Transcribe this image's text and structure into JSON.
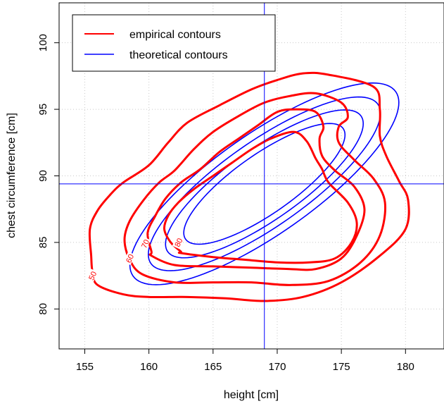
{
  "chart_data": {
    "type": "contour",
    "xlabel": "height [cm]",
    "ylabel": "chest circumference [cm]",
    "xlim": [
      153,
      183
    ],
    "ylim": [
      77,
      103
    ],
    "xticks": [
      155,
      160,
      165,
      170,
      175,
      180
    ],
    "yticks": [
      80,
      85,
      90,
      95,
      100
    ],
    "grid": true,
    "legend_position": "top-left",
    "reference_lines": {
      "vertical_x": 169,
      "horizontal_y": 89.4,
      "color": "#0000ff"
    },
    "series": [
      {
        "name": "empirical contours",
        "color": "#ff0000",
        "contours": [
          {
            "level": "50",
            "label_at": [
              155.6,
              82.5
            ],
            "points": [
              [
                156,
                81.8
              ],
              [
                158,
                81.1
              ],
              [
                160,
                80.9
              ],
              [
                163,
                80.9
              ],
              [
                166,
                80.8
              ],
              [
                169,
                80.6
              ],
              [
                172,
                80.9
              ],
              [
                175,
                82
              ],
              [
                178,
                84
              ],
              [
                180,
                86
              ],
              [
                180.2,
                88.2
              ],
              [
                179.5,
                89.6
              ],
              [
                178.5,
                91.5
              ],
              [
                178,
                93
              ],
              [
                178,
                95
              ],
              [
                177.5,
                96.7
              ],
              [
                174,
                97.6
              ],
              [
                172,
                97.7
              ],
              [
                170,
                97.2
              ],
              [
                168,
                96.5
              ],
              [
                165.5,
                95.3
              ],
              [
                163,
                94
              ],
              [
                161.5,
                92.5
              ],
              [
                160,
                90.8
              ],
              [
                158,
                89.5
              ],
              [
                157,
                88.6
              ],
              [
                156,
                87.4
              ],
              [
                155.4,
                86
              ],
              [
                155.5,
                84
              ],
              [
                155.6,
                82.8
              ]
            ]
          },
          {
            "level": "60",
            "label_at": [
              158.5,
              83.8
            ],
            "points": [
              [
                159.5,
                82.6
              ],
              [
                162,
                82
              ],
              [
                165,
                82
              ],
              [
                168,
                82
              ],
              [
                171,
                81.8
              ],
              [
                174,
                82.1
              ],
              [
                176.5,
                83.5
              ],
              [
                178,
                85.5
              ],
              [
                178.4,
                88
              ],
              [
                177.5,
                89.8
              ],
              [
                176,
                91.2
              ],
              [
                174.8,
                92.5
              ],
              [
                174.8,
                93.7
              ],
              [
                175.5,
                94.4
              ],
              [
                175,
                95.5
              ],
              [
                173,
                96.2
              ],
              [
                171,
                96
              ],
              [
                169,
                95.5
              ],
              [
                167,
                94.5
              ],
              [
                165,
                93.3
              ],
              [
                163.5,
                92
              ],
              [
                162,
                90.4
              ],
              [
                160.8,
                89.5
              ],
              [
                159.6,
                88.2
              ],
              [
                158.5,
                86.6
              ],
              [
                158.1,
                85.2
              ],
              [
                158.5,
                83.7
              ]
            ]
          },
          {
            "level": "70",
            "label_at": [
              159.7,
              84.9
            ],
            "points": [
              [
                160.2,
                84
              ],
              [
                162,
                83.3
              ],
              [
                165,
                83.2
              ],
              [
                168,
                83.1
              ],
              [
                171,
                83
              ],
              [
                173,
                83
              ],
              [
                175,
                83.8
              ],
              [
                176.2,
                85.5
              ],
              [
                176.8,
                87.5
              ],
              [
                176,
                89.2
              ],
              [
                174.5,
                90.4
              ],
              [
                173.5,
                91.5
              ],
              [
                173.3,
                92.8
              ],
              [
                173.6,
                93.7
              ],
              [
                173,
                94.8
              ],
              [
                171.5,
                95
              ],
              [
                170,
                94.8
              ],
              [
                168.5,
                93.8
              ],
              [
                167,
                92.8
              ],
              [
                165.5,
                91.8
              ],
              [
                164,
                90.5
              ],
              [
                162.5,
                89.5
              ],
              [
                161.3,
                88.3
              ],
              [
                160.5,
                87
              ],
              [
                159.9,
                85.7
              ],
              [
                160.2,
                84.3
              ]
            ]
          },
          {
            "level": "80",
            "label_at": [
              162.3,
              85.0
            ],
            "points": [
              [
                162.5,
                84.2
              ],
              [
                165,
                83.9
              ],
              [
                167.5,
                83.7
              ],
              [
                170,
                83.5
              ],
              [
                172.5,
                83.5
              ],
              [
                174.5,
                83.8
              ],
              [
                175.8,
                85
              ],
              [
                176.2,
                86.5
              ],
              [
                175.5,
                88
              ],
              [
                174,
                89.5
              ],
              [
                173.5,
                90.5
              ],
              [
                173,
                91.3
              ],
              [
                172.3,
                92.6
              ],
              [
                171.3,
                93.3
              ],
              [
                169.5,
                92.8
              ],
              [
                168,
                92
              ],
              [
                166.5,
                91
              ],
              [
                165,
                90
              ],
              [
                163.5,
                89
              ],
              [
                162.3,
                88
              ],
              [
                161.5,
                87
              ],
              [
                161.2,
                86
              ],
              [
                161.7,
                85
              ],
              [
                162.5,
                84.3
              ]
            ]
          }
        ]
      },
      {
        "name": "theoretical contours",
        "color": "#0000ff",
        "contours": [
          {
            "center": [
              169,
              89.4
            ],
            "rx": 12.5,
            "ry": 3.9,
            "angle_deg": 35
          },
          {
            "center": [
              169,
              89.4
            ],
            "rx": 10.8,
            "ry": 3.3,
            "angle_deg": 35
          },
          {
            "center": [
              169,
              89.4
            ],
            "rx": 9.2,
            "ry": 2.8,
            "angle_deg": 35
          },
          {
            "center": [
              169,
              89.4
            ],
            "rx": 7.5,
            "ry": 2.3,
            "angle_deg": 35
          }
        ]
      }
    ]
  }
}
